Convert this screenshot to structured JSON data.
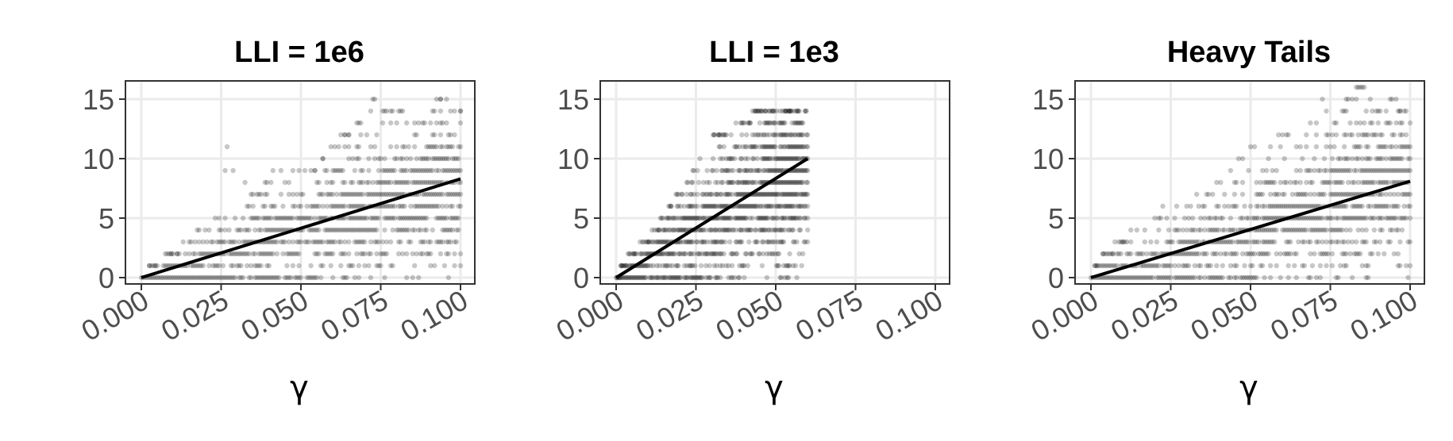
{
  "chart_data": [
    {
      "type": "scatter",
      "title": "LLI = 1e6",
      "xlabel": "γ",
      "ylabel": "",
      "xlim": [
        0,
        0.1
      ],
      "ylim": [
        0,
        16
      ],
      "x_ticks": [
        "0.000",
        "0.025",
        "0.050",
        "0.075",
        "0.100"
      ],
      "y_ticks": [
        "0",
        "5",
        "10",
        "15"
      ],
      "x_max_data": 0.1,
      "max_points": [
        [
          0.0,
          0
        ],
        [
          0.005,
          1
        ],
        [
          0.01,
          2
        ],
        [
          0.015,
          3
        ],
        [
          0.02,
          4
        ],
        [
          0.025,
          5
        ],
        [
          0.027,
          11
        ],
        [
          0.03,
          8
        ],
        [
          0.035,
          7
        ],
        [
          0.04,
          8
        ],
        [
          0.042,
          10
        ],
        [
          0.045,
          8
        ],
        [
          0.05,
          9
        ],
        [
          0.055,
          9
        ],
        [
          0.06,
          11
        ],
        [
          0.065,
          12
        ],
        [
          0.07,
          13
        ],
        [
          0.073,
          15
        ],
        [
          0.075,
          14
        ],
        [
          0.08,
          14
        ],
        [
          0.085,
          13
        ],
        [
          0.09,
          13
        ],
        [
          0.093,
          15
        ],
        [
          0.1,
          14
        ]
      ],
      "fit": [
        [
          0.0,
          0.0
        ],
        [
          0.1,
          8.3
        ]
      ],
      "grid": true,
      "point_color": "#000000"
    },
    {
      "type": "scatter",
      "title": "LLI = 1e3",
      "xlabel": "γ",
      "ylabel": "",
      "xlim": [
        0,
        0.1
      ],
      "ylim": [
        0,
        16
      ],
      "x_ticks": [
        "0.000",
        "0.025",
        "0.050",
        "0.075",
        "0.100"
      ],
      "y_ticks": [
        "0",
        "5",
        "10",
        "15"
      ],
      "x_max_data": 0.06,
      "max_points": [
        [
          0.0,
          0
        ],
        [
          0.005,
          2
        ],
        [
          0.01,
          3
        ],
        [
          0.015,
          5
        ],
        [
          0.02,
          7
        ],
        [
          0.025,
          9
        ],
        [
          0.03,
          12
        ],
        [
          0.035,
          12
        ],
        [
          0.04,
          13
        ],
        [
          0.045,
          14
        ],
        [
          0.05,
          14
        ],
        [
          0.055,
          14
        ],
        [
          0.06,
          14
        ]
      ],
      "fit": [
        [
          0.0,
          0.0
        ],
        [
          0.06,
          10.0
        ]
      ],
      "grid": true,
      "point_color": "#000000"
    },
    {
      "type": "scatter",
      "title": "Heavy Tails",
      "xlabel": "γ",
      "ylabel": "",
      "xlim": [
        0,
        0.1
      ],
      "ylim": [
        0,
        16
      ],
      "x_ticks": [
        "0.000",
        "0.025",
        "0.050",
        "0.075",
        "0.100"
      ],
      "y_ticks": [
        "0",
        "5",
        "10",
        "15"
      ],
      "x_max_data": 0.1,
      "max_points": [
        [
          0.0,
          0
        ],
        [
          0.005,
          2
        ],
        [
          0.01,
          3
        ],
        [
          0.015,
          4
        ],
        [
          0.02,
          5
        ],
        [
          0.025,
          6
        ],
        [
          0.03,
          6
        ],
        [
          0.035,
          7
        ],
        [
          0.04,
          8
        ],
        [
          0.045,
          9
        ],
        [
          0.05,
          11
        ],
        [
          0.055,
          10
        ],
        [
          0.06,
          12
        ],
        [
          0.065,
          11
        ],
        [
          0.07,
          13
        ],
        [
          0.073,
          15
        ],
        [
          0.075,
          12
        ],
        [
          0.08,
          15
        ],
        [
          0.085,
          16
        ],
        [
          0.09,
          14
        ],
        [
          0.095,
          15
        ],
        [
          0.1,
          13
        ]
      ],
      "fit": [
        [
          0.0,
          0.0
        ],
        [
          0.1,
          8.1
        ]
      ],
      "grid": true,
      "point_color": "#000000"
    }
  ]
}
